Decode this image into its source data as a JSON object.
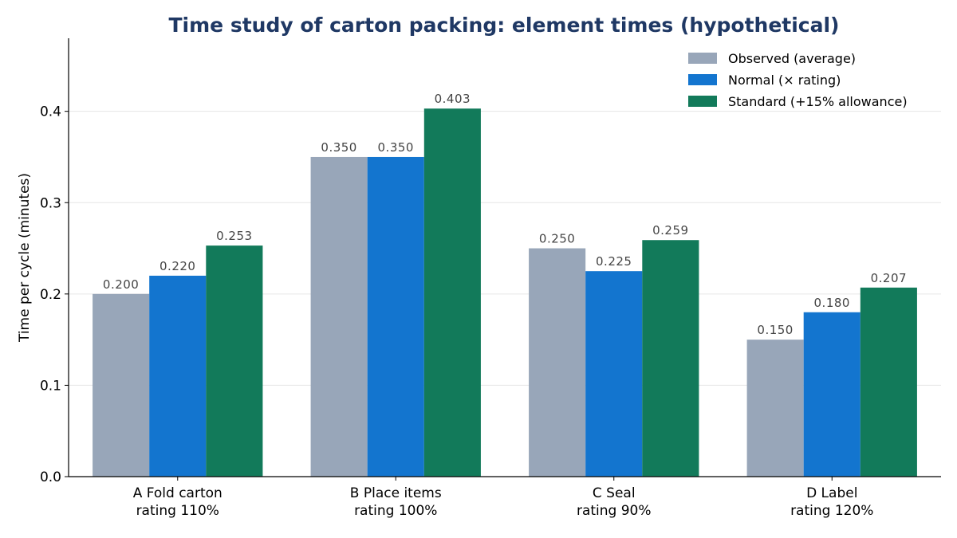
{
  "chart_data": {
    "type": "bar",
    "title": "Time study of carton packing: element times (hypothetical)",
    "title_color": "#1f3864",
    "ylabel": "Time per cycle (minutes)",
    "xlabel": "",
    "ylim": [
      0,
      0.48
    ],
    "yticks": [
      "0.0",
      "0.1",
      "0.2",
      "0.3",
      "0.4"
    ],
    "grid": "horizontal",
    "legend_position": "top-right",
    "categories": [
      [
        "A Fold carton",
        "rating 110%"
      ],
      [
        "B Place items",
        "rating 100%"
      ],
      [
        "C Seal",
        "rating 90%"
      ],
      [
        "D Label",
        "rating 120%"
      ]
    ],
    "series": [
      {
        "name": "Observed (average)",
        "color": "#98a6b9",
        "values": [
          0.2,
          0.35,
          0.25,
          0.15
        ],
        "labels": [
          "0.200",
          "0.350",
          "0.250",
          "0.150"
        ]
      },
      {
        "name": "Normal (× rating)",
        "color": "#1375cf",
        "values": [
          0.22,
          0.35,
          0.225,
          0.18
        ],
        "labels": [
          "0.220",
          "0.350",
          "0.225",
          "0.180"
        ]
      },
      {
        "name": "Standard (+15% allowance)",
        "color": "#127a5a",
        "values": [
          0.253,
          0.403,
          0.259,
          0.207
        ],
        "labels": [
          "0.253",
          "0.403",
          "0.259",
          "0.207"
        ]
      }
    ]
  }
}
